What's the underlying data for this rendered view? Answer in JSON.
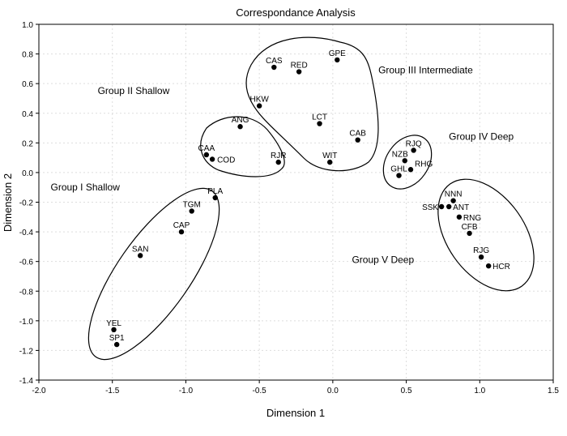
{
  "chart_data": {
    "type": "scatter",
    "title": "Correspondance Analysis",
    "xlabel": "Dimension 1",
    "ylabel": "Dimension 2",
    "xlim": [
      -2.0,
      1.5
    ],
    "ylim": [
      -1.4,
      1.0
    ],
    "xticks": [
      "-2.0",
      "-1.5",
      "-1.0",
      "-0.5",
      "0.0",
      "0.5",
      "1.0",
      "1.5"
    ],
    "yticks": [
      "1.0",
      "0.8",
      "0.6",
      "0.4",
      "0.2",
      "0.0",
      "-0.2",
      "-0.4",
      "-0.6",
      "-0.8",
      "-1.0",
      "-1.2",
      "-1.4"
    ],
    "grid": true,
    "points": [
      {
        "label": "CAS",
        "x": -0.4,
        "y": 0.71
      },
      {
        "label": "RED",
        "x": -0.23,
        "y": 0.68
      },
      {
        "label": "GPE",
        "x": 0.03,
        "y": 0.76
      },
      {
        "label": "HKW",
        "x": -0.5,
        "y": 0.45
      },
      {
        "label": "LCT",
        "x": -0.09,
        "y": 0.33
      },
      {
        "label": "CAB",
        "x": 0.17,
        "y": 0.22
      },
      {
        "label": "WIT",
        "x": -0.02,
        "y": 0.07
      },
      {
        "label": "ANG",
        "x": -0.63,
        "y": 0.31
      },
      {
        "label": "CAA",
        "x": -0.86,
        "y": 0.12
      },
      {
        "label": "COD",
        "x": -0.82,
        "y": 0.09
      },
      {
        "label": "RJR",
        "x": -0.37,
        "y": 0.07
      },
      {
        "label": "RJQ",
        "x": 0.55,
        "y": 0.15
      },
      {
        "label": "NZB",
        "x": 0.49,
        "y": 0.08
      },
      {
        "label": "RHG",
        "x": 0.53,
        "y": 0.02
      },
      {
        "label": "GHL",
        "x": 0.45,
        "y": -0.02
      },
      {
        "label": "NNN",
        "x": 0.82,
        "y": -0.19
      },
      {
        "label": "SSK",
        "x": 0.74,
        "y": -0.23
      },
      {
        "label": "ANT",
        "x": 0.79,
        "y": -0.23
      },
      {
        "label": "RNG",
        "x": 0.86,
        "y": -0.3
      },
      {
        "label": "CFB",
        "x": 0.93,
        "y": -0.41
      },
      {
        "label": "RJG",
        "x": 1.01,
        "y": -0.57
      },
      {
        "label": "HCR",
        "x": 1.06,
        "y": -0.63
      },
      {
        "label": "PLA",
        "x": -0.8,
        "y": -0.17
      },
      {
        "label": "TGM",
        "x": -0.96,
        "y": -0.26
      },
      {
        "label": "CAP",
        "x": -1.03,
        "y": -0.4
      },
      {
        "label": "SAN",
        "x": -1.31,
        "y": -0.56
      },
      {
        "label": "YEL",
        "x": -1.49,
        "y": -1.06
      },
      {
        "label": "SP1",
        "x": -1.47,
        "y": -1.16
      }
    ],
    "annotations": [
      {
        "text": "Group II Shallow",
        "x": -1.6,
        "y": 0.53
      },
      {
        "text": "Group III Intermediate",
        "x": 0.31,
        "y": 0.67
      },
      {
        "text": "Group IV Deep",
        "x": 0.79,
        "y": 0.22
      },
      {
        "text": "Group I Shallow",
        "x": -1.92,
        "y": -0.12
      },
      {
        "text": "Group V Deep",
        "x": 0.13,
        "y": -0.61
      }
    ]
  }
}
